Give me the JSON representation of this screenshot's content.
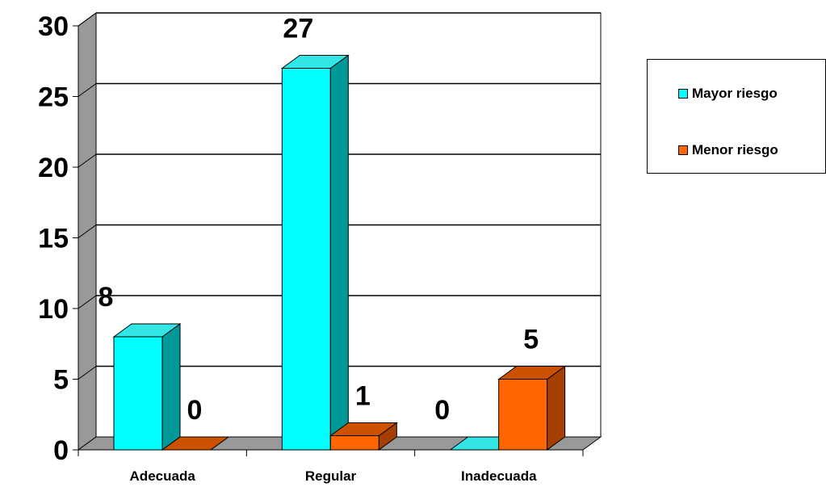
{
  "chart_data": {
    "type": "bar",
    "categories": [
      "Adecuada",
      "Regular",
      "Inadecuada"
    ],
    "series": [
      {
        "name": "Mayor riesgo",
        "values": [
          8,
          27,
          0
        ],
        "color": "#00FFFF",
        "side_color": "#009999",
        "top_color": "#33E6E6"
      },
      {
        "name": "Menor riesgo",
        "values": [
          0,
          1,
          5
        ],
        "color": "#FF6600",
        "side_color": "#A33F00",
        "top_color": "#CC5200"
      }
    ],
    "yticks": [
      "0",
      "5",
      "10",
      "15",
      "20",
      "25",
      "30"
    ],
    "ylim": [
      0,
      30
    ],
    "grid": true,
    "legend_position": "right",
    "data_labels": true
  },
  "legend": {
    "items": [
      {
        "label": "Mayor riesgo",
        "color": "#00FFFF"
      },
      {
        "label": "Menor riesgo",
        "color": "#FF6600"
      }
    ]
  }
}
